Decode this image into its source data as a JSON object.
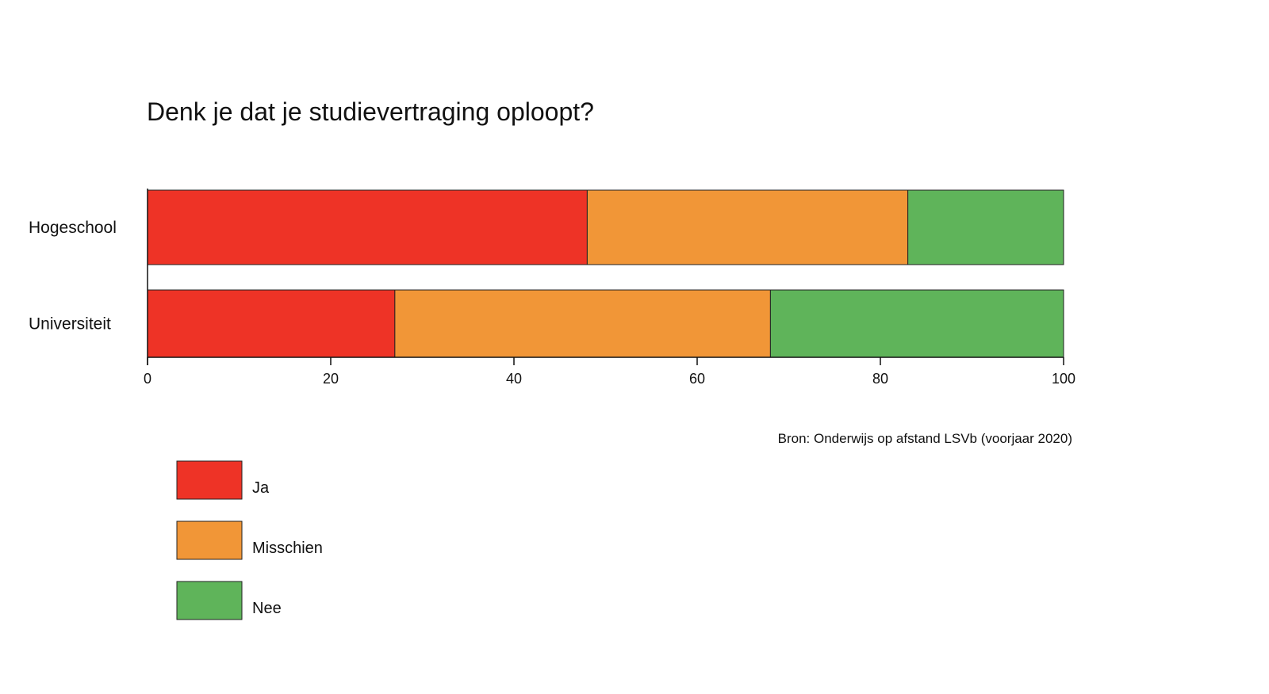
{
  "chart_data": {
    "type": "bar",
    "orientation": "horizontal",
    "stacked": true,
    "title": "Denk je dat je studievertraging oploopt?",
    "xlabel": "",
    "ylabel": "",
    "categories": [
      "Hogeschool",
      "Universiteit"
    ],
    "series": [
      {
        "name": "Ja",
        "color": "#ee3326",
        "values": [
          48,
          27
        ]
      },
      {
        "name": "Misschien",
        "color": "#f19637",
        "values": [
          35,
          41
        ]
      },
      {
        "name": "Nee",
        "color": "#5fb45a",
        "values": [
          17,
          32
        ]
      }
    ],
    "xlim": [
      0,
      100
    ],
    "xticks": [
      0,
      20,
      40,
      60,
      80,
      100
    ],
    "grid": false,
    "legend_position": "bottom-left",
    "source": "Bron: Onderwijs op afstand LSVb (voorjaar 2020)"
  }
}
